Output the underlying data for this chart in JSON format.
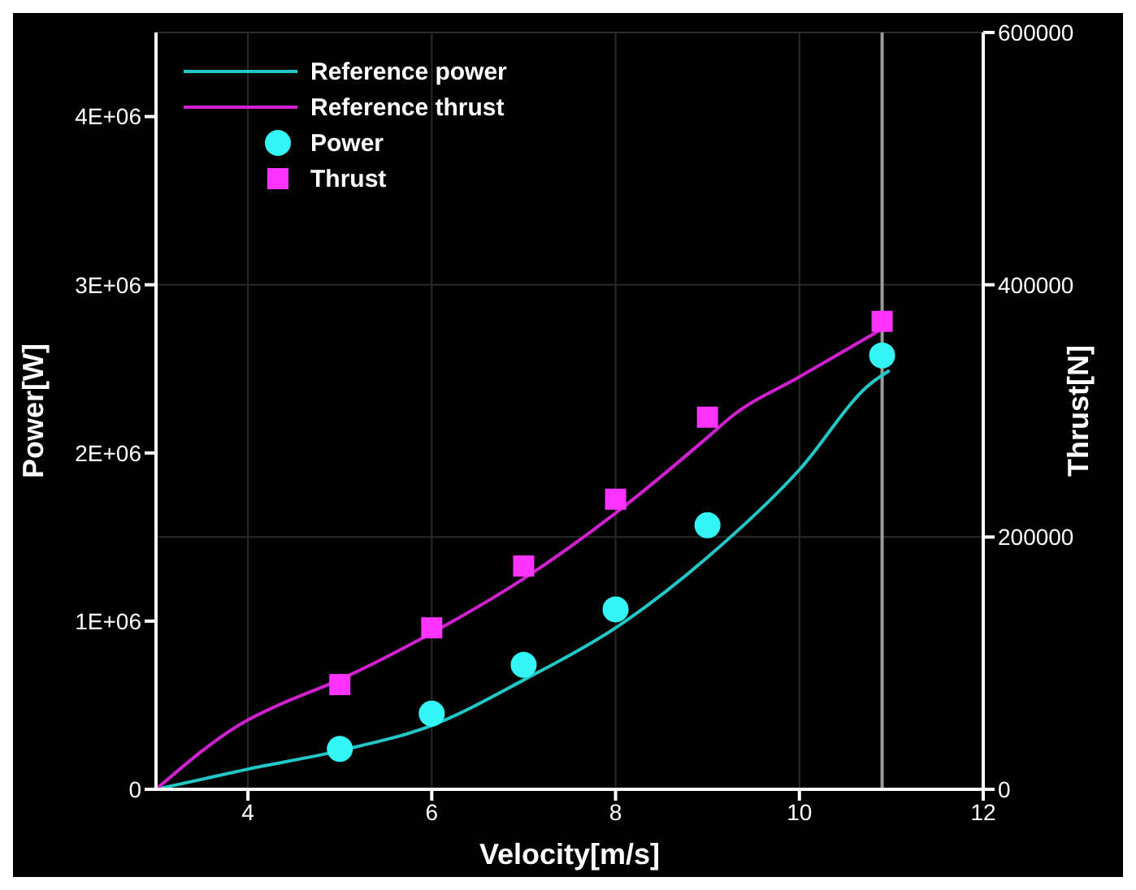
{
  "chart_data": {
    "type": "line",
    "xlabel": "Velocity[m/s]",
    "ylabel": "Power[W]",
    "y2label": "Thrust[N]",
    "xlim": [
      3,
      12
    ],
    "xticks": [
      4,
      6,
      8,
      10,
      12
    ],
    "ylim": [
      0,
      4500000
    ],
    "yticks": [
      0,
      {
        "value": 1000000,
        "label": "1E+06"
      },
      {
        "value": 2000000,
        "label": "2E+06"
      },
      {
        "value": 3000000,
        "label": "3E+06"
      },
      {
        "value": 4000000,
        "label": "4E+06"
      }
    ],
    "y2lim": [
      0,
      600000
    ],
    "y2ticks": [
      0,
      200000,
      400000,
      600000
    ],
    "grid": true,
    "legend": "top left",
    "ref_lines": [
      {
        "axis": "x",
        "value": 10.9,
        "color": "#9a9a9a"
      }
    ],
    "series": [
      {
        "name": "Reference power",
        "color": "#22c8c8",
        "marker": "none",
        "x": [
          3,
          4,
          5,
          6,
          7,
          8,
          9,
          10,
          10.77,
          10.98
        ],
        "values": [
          0,
          120000,
          230000,
          380000,
          650000,
          960000,
          1380000,
          1900000,
          2410000,
          2490000
        ]
      },
      {
        "name": "Reference thrust",
        "color": "#d020d0",
        "marker": "none",
        "axis": "y2",
        "x": [
          3,
          4,
          4.28,
          5,
          6,
          7,
          8,
          9,
          9.27,
          10,
          10.9
        ],
        "values": [
          0,
          55000,
          65000,
          87000,
          124000,
          167000,
          219000,
          279000,
          296000,
          327000,
          365000
        ]
      },
      {
        "name": "Power",
        "type": "scatter",
        "color": "#33f5f5",
        "marker": "circle",
        "x": [
          5,
          6,
          7,
          8,
          9,
          10.9
        ],
        "values": [
          240000,
          450000,
          740000,
          1070000,
          1570000,
          2580000
        ]
      },
      {
        "name": "Thrust",
        "type": "scatter",
        "color": "#ff33ff",
        "marker": "square",
        "axis": "y2",
        "x": [
          5,
          6,
          7,
          8,
          9,
          10.9
        ],
        "values": [
          83000,
          128000,
          177000,
          230000,
          295000,
          371000
        ]
      }
    ]
  }
}
